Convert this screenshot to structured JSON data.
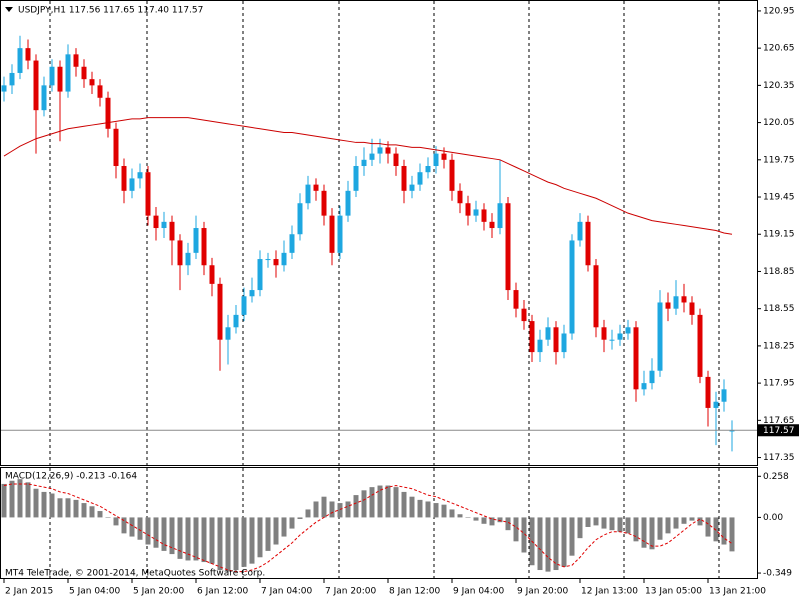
{
  "chart_data": [
    {
      "type": "candlestick",
      "title": "USDJPY,H1  117.56 117.65 117.40 117.57",
      "up_color": "#1ea7e0",
      "down_color": "#e00000",
      "categories": [
        "2 Jan 2015",
        null,
        null,
        null,
        null,
        null,
        null,
        null,
        "5 Jan 04:00",
        null,
        null,
        null,
        null,
        null,
        null,
        null,
        "5 Jan 20:00",
        null,
        null,
        null,
        null,
        null,
        null,
        null,
        "6 Jan 12:00",
        null,
        null,
        null,
        null,
        null,
        null,
        null,
        "7 Jan 04:00",
        null,
        null,
        null,
        null,
        null,
        null,
        null,
        "7 Jan 20:00",
        null,
        null,
        null,
        null,
        null,
        null,
        null,
        "8 Jan 12:00",
        null,
        null,
        null,
        null,
        null,
        null,
        null,
        "9 Jan 04:00",
        null,
        null,
        null,
        null,
        null,
        null,
        null,
        "9 Jan 20:00",
        null,
        null,
        null,
        null,
        null,
        null,
        null,
        "12 Jan 13:00",
        null,
        null,
        null,
        null,
        null,
        null,
        null,
        "13 Jan 05:00",
        null,
        null,
        null,
        null,
        null,
        null,
        null,
        "13 Jan 21:00",
        null,
        null,
        null
      ],
      "open": [
        120.3,
        120.35,
        120.45,
        120.65,
        120.55,
        120.15,
        120.35,
        120.5,
        120.3,
        120.6,
        120.5,
        120.4,
        120.35,
        120.25,
        120.0,
        119.7,
        119.5,
        119.6,
        119.65,
        119.3,
        119.2,
        119.25,
        119.1,
        118.9,
        119.0,
        119.2,
        118.9,
        118.75,
        118.3,
        118.4,
        118.5,
        118.65,
        118.7,
        118.95,
        118.95,
        118.9,
        119.0,
        119.15,
        119.4,
        119.55,
        119.5,
        119.3,
        119.0,
        119.3,
        119.5,
        119.7,
        119.75,
        119.8,
        119.85,
        119.8,
        119.7,
        119.5,
        119.55,
        119.65,
        119.7,
        119.8,
        119.75,
        119.5,
        119.4,
        119.3,
        119.35,
        119.25,
        119.2,
        119.4,
        118.7,
        118.55,
        118.45,
        118.2,
        118.3,
        118.4,
        118.2,
        118.35,
        119.1,
        119.25,
        118.9,
        118.4,
        118.3,
        118.3,
        118.35,
        118.4,
        117.9,
        117.95,
        118.05,
        118.6,
        118.55,
        118.65,
        118.6,
        118.5,
        118.0,
        117.75,
        117.8,
        117.56
      ],
      "high": [
        120.42,
        120.52,
        120.75,
        120.72,
        120.6,
        120.42,
        120.56,
        120.55,
        120.68,
        120.65,
        120.56,
        120.46,
        120.4,
        120.3,
        120.05,
        119.76,
        119.68,
        119.72,
        119.7,
        119.37,
        119.33,
        119.3,
        119.15,
        119.08,
        119.3,
        119.25,
        118.96,
        118.8,
        118.5,
        118.58,
        118.72,
        118.8,
        119.02,
        119.0,
        119.02,
        119.1,
        119.22,
        119.48,
        119.62,
        119.6,
        119.55,
        119.36,
        119.38,
        119.58,
        119.78,
        119.85,
        119.92,
        119.92,
        119.9,
        119.85,
        119.75,
        119.62,
        119.72,
        119.77,
        119.86,
        119.85,
        119.8,
        119.56,
        119.46,
        119.42,
        119.4,
        119.32,
        119.75,
        119.45,
        118.76,
        118.62,
        118.5,
        118.38,
        118.48,
        118.45,
        118.42,
        119.15,
        119.32,
        119.3,
        118.95,
        118.46,
        118.38,
        118.42,
        118.46,
        118.45,
        118.05,
        118.15,
        118.7,
        118.68,
        118.78,
        118.75,
        118.65,
        118.55,
        118.05,
        117.88,
        117.98,
        117.65
      ],
      "low": [
        120.22,
        120.28,
        120.4,
        120.48,
        119.8,
        120.1,
        120.3,
        119.9,
        120.25,
        120.42,
        120.33,
        120.28,
        120.18,
        119.93,
        119.6,
        119.4,
        119.44,
        119.52,
        119.22,
        119.1,
        119.12,
        118.9,
        118.7,
        118.82,
        118.95,
        118.82,
        118.65,
        118.05,
        118.1,
        118.35,
        118.45,
        118.6,
        118.65,
        118.88,
        118.8,
        118.85,
        118.95,
        119.1,
        119.35,
        119.42,
        119.22,
        118.9,
        118.95,
        119.25,
        119.45,
        119.62,
        119.7,
        119.72,
        119.72,
        119.62,
        119.4,
        119.44,
        119.5,
        119.6,
        119.64,
        119.68,
        119.42,
        119.32,
        119.22,
        119.25,
        119.18,
        119.12,
        119.15,
        118.62,
        118.48,
        118.38,
        118.12,
        118.12,
        118.25,
        118.1,
        118.15,
        118.3,
        119.05,
        118.85,
        118.32,
        118.2,
        118.22,
        118.25,
        118.3,
        117.8,
        117.85,
        117.9,
        118.0,
        118.45,
        118.5,
        118.52,
        118.42,
        117.95,
        117.6,
        117.45,
        117.72,
        117.4
      ],
      "close": [
        120.35,
        120.45,
        120.65,
        120.55,
        120.15,
        120.35,
        120.5,
        120.3,
        120.6,
        120.5,
        120.4,
        120.35,
        120.25,
        120.0,
        119.7,
        119.5,
        119.6,
        119.65,
        119.3,
        119.2,
        119.25,
        119.1,
        118.9,
        119.0,
        119.2,
        118.9,
        118.75,
        118.3,
        118.4,
        118.5,
        118.65,
        118.7,
        118.95,
        118.95,
        118.9,
        119.0,
        119.15,
        119.4,
        119.55,
        119.5,
        119.3,
        119.0,
        119.3,
        119.5,
        119.7,
        119.75,
        119.8,
        119.85,
        119.8,
        119.7,
        119.5,
        119.55,
        119.65,
        119.7,
        119.8,
        119.75,
        119.5,
        119.4,
        119.3,
        119.35,
        119.25,
        119.2,
        119.4,
        118.7,
        118.55,
        118.45,
        118.2,
        118.3,
        118.4,
        118.2,
        118.35,
        119.1,
        119.25,
        118.9,
        118.4,
        118.3,
        118.3,
        118.35,
        118.4,
        117.9,
        117.95,
        118.05,
        118.6,
        118.55,
        118.65,
        118.6,
        118.5,
        118.0,
        117.75,
        117.8,
        117.9,
        117.57
      ],
      "ma": {
        "color": "#cc0000",
        "values": [
          119.78,
          119.82,
          119.86,
          119.89,
          119.92,
          119.94,
          119.96,
          119.98,
          120.0,
          120.01,
          120.02,
          120.03,
          120.04,
          120.05,
          120.06,
          120.07,
          120.08,
          120.08,
          120.09,
          120.09,
          120.09,
          120.09,
          120.09,
          120.09,
          120.08,
          120.07,
          120.06,
          120.05,
          120.04,
          120.03,
          120.02,
          120.01,
          120.0,
          119.99,
          119.98,
          119.97,
          119.97,
          119.96,
          119.95,
          119.94,
          119.93,
          119.92,
          119.91,
          119.9,
          119.89,
          119.89,
          119.88,
          119.88,
          119.87,
          119.87,
          119.86,
          119.85,
          119.85,
          119.84,
          119.83,
          119.82,
          119.81,
          119.8,
          119.79,
          119.78,
          119.77,
          119.76,
          119.75,
          119.72,
          119.69,
          119.66,
          119.63,
          119.6,
          119.57,
          119.55,
          119.52,
          119.5,
          119.48,
          119.46,
          119.44,
          119.41,
          119.38,
          119.35,
          119.32,
          119.3,
          119.28,
          119.26,
          119.25,
          119.24,
          119.23,
          119.22,
          119.21,
          119.2,
          119.19,
          119.18,
          119.16,
          119.15
        ]
      },
      "last_price": 117.57,
      "ylim": [
        117.29,
        121.03
      ],
      "yticks": [
        120.95,
        120.65,
        120.35,
        120.05,
        119.75,
        119.45,
        119.15,
        118.85,
        118.55,
        118.25,
        117.95,
        117.65,
        117.35
      ],
      "footer": "MT4 TeleTrade, © 2001-2014, MetaQuotes Software Corp."
    },
    {
      "type": "bar",
      "title": "MACD(12,26,9) -0.213 -0.164",
      "color": "#808080",
      "values": [
        0.21,
        0.23,
        0.24,
        0.22,
        0.18,
        0.16,
        0.15,
        0.12,
        0.12,
        0.11,
        0.09,
        0.07,
        0.04,
        0.0,
        -0.05,
        -0.1,
        -0.12,
        -0.14,
        -0.17,
        -0.19,
        -0.21,
        -0.23,
        -0.26,
        -0.27,
        -0.27,
        -0.28,
        -0.29,
        -0.33,
        -0.34,
        -0.33,
        -0.31,
        -0.29,
        -0.25,
        -0.21,
        -0.17,
        -0.12,
        -0.07,
        -0.01,
        0.05,
        0.1,
        0.13,
        0.1,
        0.09,
        0.1,
        0.14,
        0.17,
        0.19,
        0.2,
        0.2,
        0.19,
        0.16,
        0.13,
        0.11,
        0.1,
        0.09,
        0.08,
        0.05,
        0.02,
        0.0,
        -0.02,
        -0.04,
        -0.05,
        -0.03,
        -0.08,
        -0.15,
        -0.22,
        -0.3,
        -0.33,
        -0.34,
        -0.33,
        -0.31,
        -0.24,
        -0.13,
        -0.06,
        -0.05,
        -0.07,
        -0.08,
        -0.09,
        -0.1,
        -0.15,
        -0.19,
        -0.2,
        -0.14,
        -0.1,
        -0.07,
        -0.04,
        -0.02,
        -0.05,
        -0.12,
        -0.15,
        -0.17,
        -0.213
      ],
      "signal": {
        "color": "#e00000",
        "values": [
          0.2,
          0.21,
          0.21,
          0.21,
          0.2,
          0.19,
          0.18,
          0.16,
          0.15,
          0.13,
          0.11,
          0.09,
          0.07,
          0.04,
          0.01,
          -0.02,
          -0.05,
          -0.08,
          -0.11,
          -0.14,
          -0.17,
          -0.19,
          -0.21,
          -0.23,
          -0.25,
          -0.27,
          -0.29,
          -0.31,
          -0.33,
          -0.34,
          -0.34,
          -0.33,
          -0.31,
          -0.28,
          -0.24,
          -0.2,
          -0.16,
          -0.11,
          -0.07,
          -0.03,
          0.0,
          0.03,
          0.05,
          0.07,
          0.09,
          0.11,
          0.14,
          0.17,
          0.19,
          0.2,
          0.19,
          0.18,
          0.16,
          0.14,
          0.13,
          0.11,
          0.09,
          0.07,
          0.05,
          0.03,
          0.01,
          -0.01,
          -0.02,
          -0.03,
          -0.06,
          -0.1,
          -0.15,
          -0.2,
          -0.25,
          -0.29,
          -0.31,
          -0.3,
          -0.25,
          -0.19,
          -0.14,
          -0.11,
          -0.09,
          -0.09,
          -0.1,
          -0.12,
          -0.15,
          -0.18,
          -0.18,
          -0.16,
          -0.12,
          -0.08,
          -0.04,
          -0.01,
          -0.04,
          -0.08,
          -0.13,
          -0.164
        ]
      },
      "ylim": [
        -0.38,
        0.31
      ],
      "yticks": [
        0.258,
        {
          "value": 0,
          "label": "0.00"
        },
        -0.349
      ]
    }
  ]
}
